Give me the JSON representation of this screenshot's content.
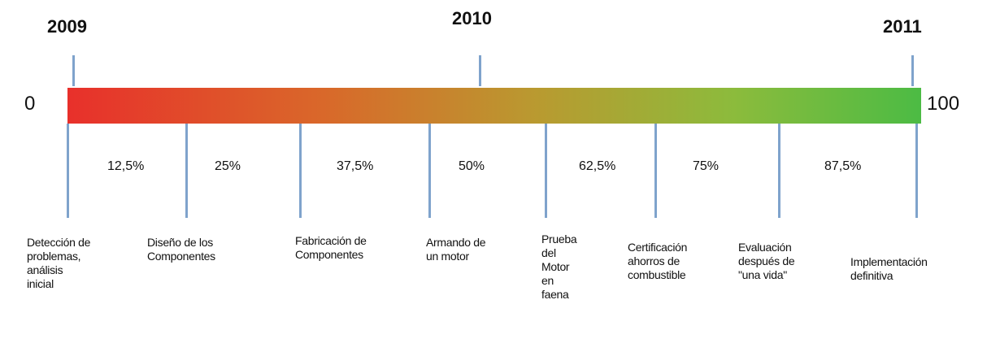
{
  "years": [
    "2009",
    "2010",
    "2011"
  ],
  "scale": {
    "start": "0",
    "end": "100"
  },
  "percentages": [
    "12,5%",
    "25%",
    "37,5%",
    "50%",
    "62,5%",
    "75%",
    "87,5%"
  ],
  "stages": [
    [
      "Detección de",
      "problemas,",
      "análisis",
      "inicial"
    ],
    [
      "Diseño de los",
      "Componentes"
    ],
    [
      "Fabricación de",
      "Componentes"
    ],
    [
      "Armando de",
      "un motor"
    ],
    [
      "Prueba",
      "del",
      "Motor",
      "en",
      "faena"
    ],
    [
      "Certificación",
      "ahorros de",
      "combustible"
    ],
    [
      "Evaluación",
      "después de",
      "\"una vida\""
    ],
    [
      "Implementación",
      "definitiva"
    ]
  ]
}
